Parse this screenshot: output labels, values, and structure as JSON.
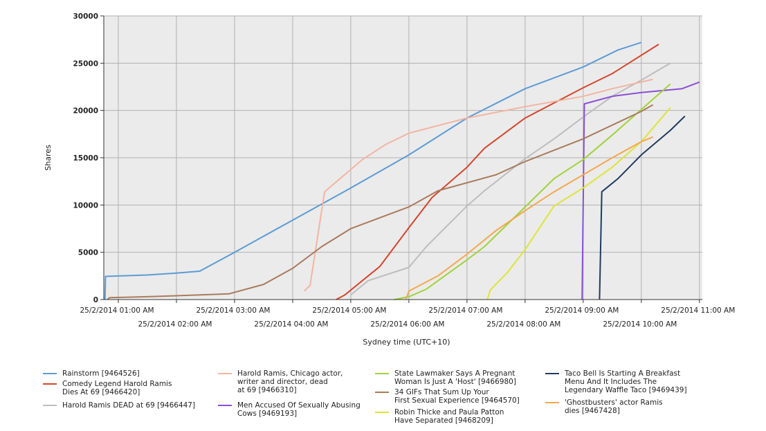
{
  "chart_data": {
    "type": "line",
    "title": "",
    "xlabel": "Sydney time (UTC+10)",
    "ylabel": "Shares",
    "ylim": [
      0,
      30000
    ],
    "yticks": [
      "0",
      "5000",
      "10000",
      "15000",
      "20000",
      "25000",
      "30000"
    ],
    "xlim": [
      0.75,
      11.05
    ],
    "grid": true,
    "legend_position": "bottom",
    "xtick_labels": [
      {
        "x": 1,
        "label": "25/2/2014 01:00 AM"
      },
      {
        "x": 2,
        "label": "25/2/2014 02:00 AM"
      },
      {
        "x": 3,
        "label": "25/2/2014 03:00 AM"
      },
      {
        "x": 4,
        "label": "25/2/2014 04:00 AM"
      },
      {
        "x": 5,
        "label": "25/2/2014 05:00 AM"
      },
      {
        "x": 6,
        "label": "25/2/2014 06:00 AM"
      },
      {
        "x": 7,
        "label": "25/2/2014 07:00 AM"
      },
      {
        "x": 8,
        "label": "25/2/2014 08:00 AM"
      },
      {
        "x": 9,
        "label": "25/2/2014 09:00 AM"
      },
      {
        "x": 10,
        "label": "25/2/2014 10:00 AM"
      },
      {
        "x": 11,
        "label": "25/2/2014 11:00 AM"
      }
    ],
    "series": [
      {
        "name": "Rainstorm [9464526]",
        "color": "#5b9bd5",
        "points": [
          [
            0.77,
            0
          ],
          [
            0.78,
            2450
          ],
          [
            1.5,
            2600
          ],
          [
            2,
            2800
          ],
          [
            2.4,
            3000
          ],
          [
            3,
            5000
          ],
          [
            4,
            8400
          ],
          [
            5,
            11800
          ],
          [
            6,
            15300
          ],
          [
            7,
            19200
          ],
          [
            8,
            22300
          ],
          [
            9,
            24600
          ],
          [
            9.6,
            26400
          ],
          [
            10,
            27200
          ]
        ]
      },
      {
        "name": "Comedy Legend Harold Ramis\nDies At 69 [9466420]",
        "color": "#d5442a",
        "points": [
          [
            4.75,
            0
          ],
          [
            4.9,
            500
          ],
          [
            5.5,
            3500
          ],
          [
            6,
            7600
          ],
          [
            6.4,
            10800
          ],
          [
            7,
            14000
          ],
          [
            7.3,
            16000
          ],
          [
            8,
            19200
          ],
          [
            9,
            22400
          ],
          [
            9.5,
            23900
          ],
          [
            10.3,
            27000
          ]
        ]
      },
      {
        "name": "Harold Ramis DEAD at 69 [9466447]",
        "color": "#bdbdbd",
        "points": [
          [
            5,
            500
          ],
          [
            5.3,
            2000
          ],
          [
            6,
            3400
          ],
          [
            6.3,
            5600
          ],
          [
            7,
            9900
          ],
          [
            7.3,
            11500
          ],
          [
            8,
            14900
          ],
          [
            8.5,
            17000
          ],
          [
            9,
            19300
          ],
          [
            9.5,
            21500
          ],
          [
            10,
            23200
          ],
          [
            10.5,
            25000
          ]
        ]
      },
      {
        "name": "Harold Ramis, Chicago actor,\nwriter and director, dead\nat 69 [9466310]",
        "color": "#f3b4a1",
        "points": [
          [
            4.2,
            900
          ],
          [
            4.3,
            1500
          ],
          [
            4.55,
            11400
          ],
          [
            5.2,
            14800
          ],
          [
            5.6,
            16400
          ],
          [
            6,
            17600
          ],
          [
            7,
            19200
          ],
          [
            8,
            20400
          ],
          [
            9,
            21500
          ],
          [
            9.5,
            22300
          ],
          [
            10.2,
            23300
          ]
        ]
      },
      {
        "name": "Men Accused Of Sexually Abusing\nCows [9469193]",
        "color": "#8a4ed4",
        "points": [
          [
            8.98,
            0
          ],
          [
            9.02,
            20700
          ],
          [
            9.5,
            21500
          ],
          [
            10,
            21900
          ],
          [
            10.7,
            22300
          ],
          [
            11,
            23000
          ]
        ]
      },
      {
        "name": "State Lawmaker Says A Pregnant\nWoman Is Just A 'Host' [9466980]",
        "color": "#9fd33a",
        "points": [
          [
            5.75,
            0
          ],
          [
            6,
            300
          ],
          [
            6.3,
            1100
          ],
          [
            7,
            4200
          ],
          [
            7.3,
            5600
          ],
          [
            8,
            9800
          ],
          [
            8.5,
            12800
          ],
          [
            9,
            14800
          ],
          [
            9.5,
            17400
          ],
          [
            10,
            20100
          ],
          [
            10.5,
            22800
          ]
        ]
      },
      {
        "name": "34 GIFs That Sum Up Your\nFirst Sexual Experience [9464570]",
        "color": "#a97a5c",
        "points": [
          [
            0.81,
            0
          ],
          [
            0.85,
            200
          ],
          [
            1.5,
            300
          ],
          [
            2,
            400
          ],
          [
            2.9,
            600
          ],
          [
            3.5,
            1600
          ],
          [
            4,
            3300
          ],
          [
            4.5,
            5600
          ],
          [
            5,
            7500
          ],
          [
            6,
            9800
          ],
          [
            6.5,
            11500
          ],
          [
            7.5,
            13200
          ],
          [
            8,
            14600
          ],
          [
            9,
            17000
          ],
          [
            10,
            19900
          ],
          [
            10.2,
            20600
          ]
        ]
      },
      {
        "name": "Robin Thicke and Paula Patton\nHave Separated [9468209]",
        "color": "#dde534",
        "points": [
          [
            7.35,
            0
          ],
          [
            7.4,
            1000
          ],
          [
            7.7,
            2900
          ],
          [
            8,
            5300
          ],
          [
            8.5,
            9900
          ],
          [
            9,
            11800
          ],
          [
            9.5,
            14000
          ],
          [
            10,
            16700
          ],
          [
            10.5,
            20300
          ]
        ]
      },
      {
        "name": "Taco Bell Is Starting A Breakfast\nMenu And It Includes The\nLegendary Waffle Taco [9469439]",
        "color": "#1f3a5f",
        "points": [
          [
            9.28,
            0
          ],
          [
            9.32,
            11400
          ],
          [
            9.6,
            12800
          ],
          [
            10,
            15300
          ],
          [
            10.5,
            17900
          ],
          [
            10.75,
            19400
          ]
        ]
      },
      {
        "name": "'Ghostbusters' actor Ramis\ndies [9467428]",
        "color": "#f5a74e",
        "points": [
          [
            5.95,
            0
          ],
          [
            6,
            900
          ],
          [
            6.5,
            2500
          ],
          [
            7,
            4800
          ],
          [
            7.5,
            7300
          ],
          [
            8,
            9400
          ],
          [
            8.5,
            11400
          ],
          [
            9,
            13200
          ],
          [
            9.5,
            15000
          ],
          [
            10,
            16700
          ],
          [
            10.2,
            17200
          ]
        ]
      }
    ]
  }
}
